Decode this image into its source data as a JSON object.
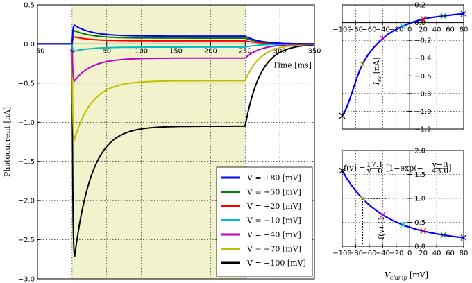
{
  "chart_data": [
    {
      "id": "photocurrent",
      "type": "line",
      "ylabel": "Photocurrent [nA]",
      "xlabel": "Time [ms]",
      "xlim": [
        -50,
        350
      ],
      "ylim": [
        -3.0,
        0.5
      ],
      "xticks": [
        -50,
        0,
        50,
        100,
        150,
        200,
        250,
        300,
        350
      ],
      "xtick_labels": [
        "−50",
        "0",
        "50",
        "100",
        "150",
        "200",
        "250",
        "300",
        "350"
      ],
      "yticks": [
        0.5,
        0.0,
        -0.5,
        -1.0,
        -1.5,
        -2.0,
        -2.5,
        -3.0
      ],
      "ytick_labels": [
        "0.5",
        "0.0",
        "−0.5",
        "−1.0",
        "−1.5",
        "−2.0",
        "−2.5",
        "−3.0"
      ],
      "shaded_interval": [
        0,
        250
      ],
      "shade_color": "#f2f2cc",
      "grid": true,
      "legend_position": "bottom-right",
      "series": [
        {
          "name": "V = +80 [mV]",
          "color": "#0000ff",
          "peak": 0.24,
          "steady": 0.1
        },
        {
          "name": "V = +50 [mV]",
          "color": "#007f00",
          "peak": 0.17,
          "steady": 0.075
        },
        {
          "name": "V = +20 [mV]",
          "color": "#ff0000",
          "peak": 0.09,
          "steady": 0.04
        },
        {
          "name": "V = −10 [mV]",
          "color": "#00bfbf",
          "peak": -0.09,
          "steady": -0.04
        },
        {
          "name": "V = −40 [mV]",
          "color": "#bf00bf",
          "peak": -0.47,
          "steady": -0.18
        },
        {
          "name": "V = −70 [mV]",
          "color": "#bfbf00",
          "peak": -1.22,
          "steady": -0.47
        },
        {
          "name": "V = −100 [mV]",
          "color": "#000000",
          "peak": -2.72,
          "steady": -1.05
        }
      ]
    },
    {
      "id": "iss",
      "type": "line",
      "ylabel": "I_ss [nA]",
      "xlim": [
        -100,
        80
      ],
      "ylim": [
        -1.2,
        0.2
      ],
      "xticks": [
        -100,
        -80,
        -60,
        -40,
        -20,
        0,
        20,
        40,
        60,
        80
      ],
      "xtick_labels": [
        "−100",
        "−80",
        "−60",
        "−40",
        "−20",
        "0",
        "20",
        "40",
        "60",
        "80"
      ],
      "yticks": [
        0.2,
        0.0,
        -0.2,
        -0.4,
        -0.6,
        -0.8,
        -1.0,
        -1.2
      ],
      "ytick_labels": [
        "0.2",
        "0.0",
        "−0.2",
        "−0.4",
        "−0.6",
        "−0.8",
        "−1.0",
        "−1.2"
      ],
      "x": [
        -100,
        -70,
        -40,
        -10,
        20,
        50,
        80
      ],
      "y": [
        -1.05,
        -0.47,
        -0.18,
        -0.04,
        0.04,
        0.075,
        0.1
      ],
      "curve_color": "#0000ff",
      "grid": true
    },
    {
      "id": "fv",
      "type": "line",
      "ylabel": "f(v) [1]",
      "xlabel": "V_clamp [mV]",
      "xlim": [
        -100,
        80
      ],
      "ylim": [
        0.0,
        2.0
      ],
      "xticks": [
        -100,
        -80,
        -60,
        -40,
        -20,
        0,
        20,
        40,
        60,
        80
      ],
      "xtick_labels": [
        "−100",
        "−80",
        "−60",
        "−40",
        "−20",
        "0",
        "20",
        "40",
        "60",
        "80"
      ],
      "yticks": [
        2.0,
        1.5,
        1.0,
        0.5,
        0.0
      ],
      "ytick_labels": [
        "2.0",
        "1.5",
        "1.0",
        "0.5",
        "0.0"
      ],
      "formula": {
        "prefix": "f(v) = ",
        "num": "17.1",
        "den": "v−0",
        "mid": " · [1−exp(−",
        "num2": "v−0",
        "den2": "43.0",
        "suffix": ")]"
      },
      "fit_A": 17.1,
      "fit_tau": 43.0,
      "reference_v": -70,
      "reference_f": 1.0,
      "curve_color": "#0000ff",
      "grid": true
    }
  ]
}
